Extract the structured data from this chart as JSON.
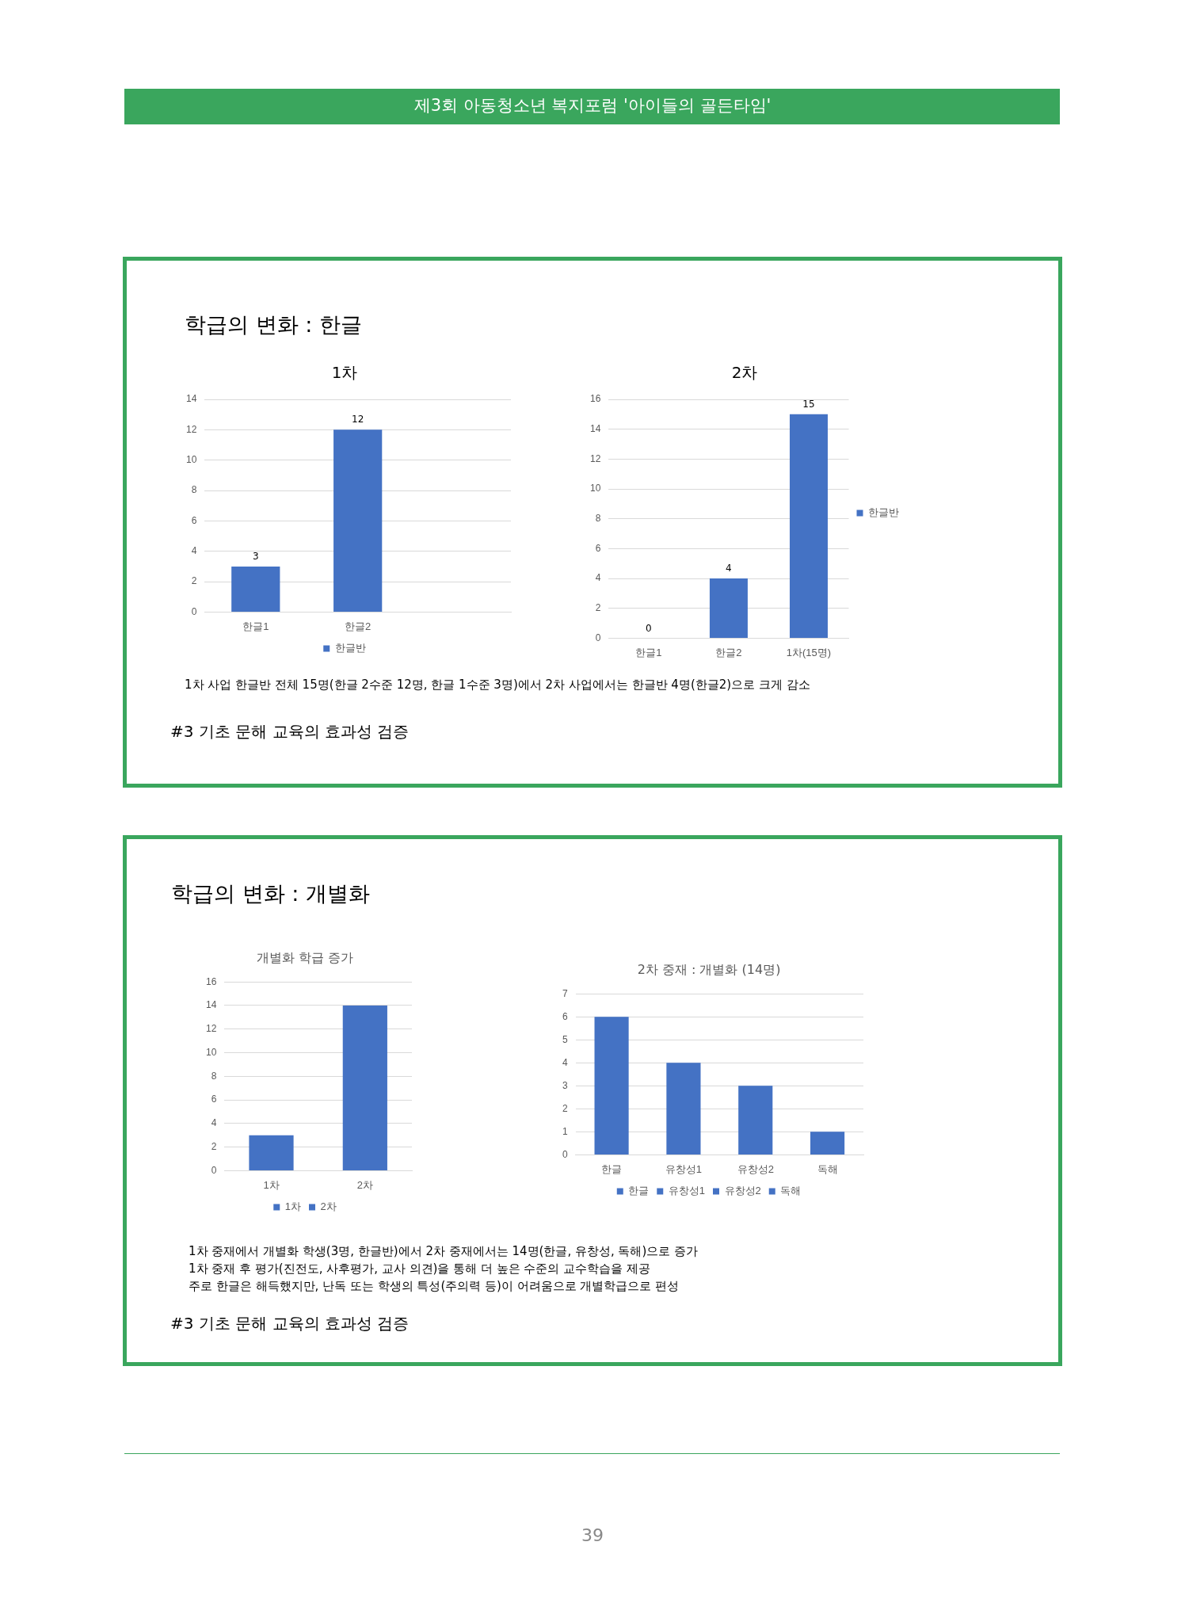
{
  "chart_data": [
    {
      "type": "bar",
      "title": "1차",
      "categories": [
        "한글1",
        "한글2",
        null
      ],
      "series": [
        {
          "name": "한글반",
          "color": "#4472c4",
          "values": [
            3,
            12,
            null
          ]
        }
      ],
      "ylim": [
        0,
        14
      ],
      "yticks": [
        0,
        2,
        4,
        6,
        8,
        10,
        12,
        14
      ],
      "grid": "y",
      "legend": "bottom",
      "data_labels": true,
      "annotations": [
        "제3회 아동청소년 복지포럼 '아이들의 골든타임'",
        "학급의 변화 : 한글",
        "1차 사업 한글반 전체 15명(한글 2수준 12명, 한글 1수준 3명)에서 2차 사업에서는 한글반 4명(한글2)으로  크게 감소",
        "#3 기초 문해 교육의 효과성 검증"
      ]
    },
    {
      "type": "bar",
      "title": "2차",
      "categories": [
        "한글1",
        "한글2",
        "1차(15명)"
      ],
      "series": [
        {
          "name": "한글반",
          "color": "#4472c4",
          "values": [
            0,
            4,
            15
          ]
        }
      ],
      "ylim": [
        0,
        16
      ],
      "yticks": [
        0,
        2,
        4,
        6,
        8,
        10,
        12,
        14,
        16
      ],
      "grid": "y",
      "legend": "right",
      "data_labels": true
    },
    {
      "type": "bar",
      "title": "개별화 학급 증가",
      "categories": [
        "1차",
        "2차"
      ],
      "series": [
        {
          "name": "1차",
          "color": "#4472c4",
          "values": [
            3,
            null
          ]
        },
        {
          "name": "2차",
          "color": "#4472c4",
          "values": [
            null,
            14
          ]
        }
      ],
      "ylim": [
        0,
        16
      ],
      "yticks": [
        0,
        2,
        4,
        6,
        8,
        10,
        12,
        14,
        16
      ],
      "grid": "y",
      "legend": "bottom",
      "annotations": [
        "학급의 변화 : 개별화",
        "1차 중재에서 개별화 학생(3명, 한글반)에서 2차 중재에서는 14명(한글, 유창성, 독해)으로 증가",
        "1차 중재 후 평가(진전도, 사후평가, 교사 의견)을 통해 더 높은 수준의 교수학습을 제공",
        "주로 한글은 해득했지만, 난독 또는 학생의 특성(주의력 등)이 어려움으로 개별학급으로 편성",
        "#3 기초 문해 교육의 효과성 검증"
      ]
    },
    {
      "type": "bar",
      "title": "2차 중재 : 개별화 (14명)",
      "categories": [
        "한글",
        "유창성1",
        "유창성2",
        "독해"
      ],
      "series": [
        {
          "name": "한글",
          "color": "#4472c4",
          "values": [
            6,
            null,
            null,
            null
          ]
        },
        {
          "name": "유창성1",
          "color": "#4472c4",
          "values": [
            null,
            4,
            null,
            null
          ]
        },
        {
          "name": "유창성2",
          "color": "#4472c4",
          "values": [
            null,
            null,
            3,
            null
          ]
        },
        {
          "name": "독해",
          "color": "#4472c4",
          "values": [
            null,
            null,
            null,
            1
          ]
        }
      ],
      "ylim": [
        0,
        7
      ],
      "yticks": [
        0,
        1,
        2,
        3,
        4,
        5,
        6,
        7
      ],
      "grid": "y",
      "legend": "bottom",
      "annotations": [
        "39"
      ]
    }
  ]
}
